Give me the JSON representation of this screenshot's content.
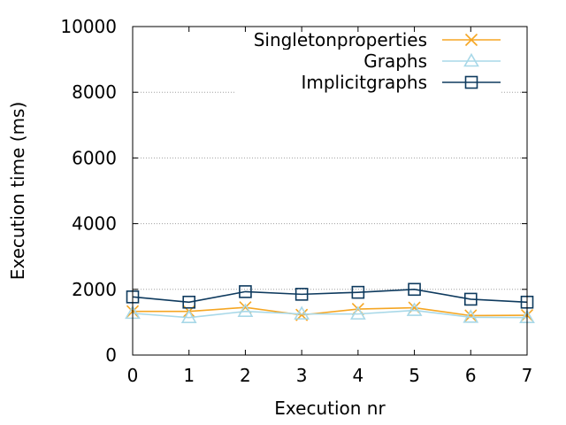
{
  "chart_data": {
    "type": "line",
    "title": "",
    "xlabel": "Execution nr",
    "ylabel": "Execution time (ms)",
    "xlim": [
      0,
      7
    ],
    "ylim": [
      0,
      10000
    ],
    "x": [
      0,
      1,
      2,
      3,
      4,
      5,
      6,
      7
    ],
    "xticks": [
      "0",
      "1",
      "2",
      "3",
      "4",
      "5",
      "6",
      "7"
    ],
    "yticks": [
      0,
      2000,
      4000,
      6000,
      8000,
      10000
    ],
    "ytick_labels": [
      "0",
      "2000",
      "4000",
      "6000",
      "8000",
      "10000"
    ],
    "grid": "horizontal dotted",
    "legend_position": "top-right",
    "series": [
      {
        "name": "Singletonproperties",
        "color": "#f5a623",
        "marker": "x-icon",
        "values": [
          1330,
          1330,
          1450,
          1220,
          1400,
          1440,
          1200,
          1210
        ]
      },
      {
        "name": "Graphs",
        "color": "#a8d8e8",
        "marker": "triangle-icon",
        "values": [
          1270,
          1140,
          1330,
          1250,
          1250,
          1360,
          1150,
          1140
        ]
      },
      {
        "name": "Implicitgraphs",
        "color": "#0e3a5e",
        "marker": "square-icon",
        "values": [
          1770,
          1610,
          1930,
          1850,
          1910,
          2000,
          1700,
          1610
        ]
      }
    ]
  }
}
